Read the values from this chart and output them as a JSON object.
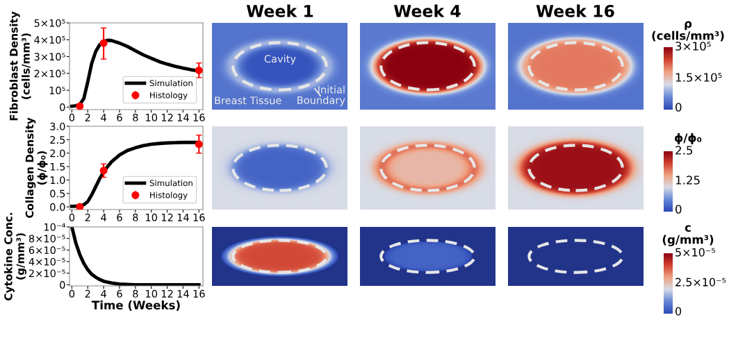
{
  "chart_data": [
    {
      "type": "line",
      "ylabel": "Fibroblast Density\n(cells/mm³)",
      "xlim": [
        -0.3,
        16.5
      ],
      "xticks": [
        0,
        2,
        4,
        6,
        8,
        10,
        12,
        14,
        16
      ],
      "ylim": [
        -15000,
        500000
      ],
      "yticks": [
        0,
        {
          "value": 100000,
          "label": "10⁵"
        },
        {
          "value": 200000,
          "label": "2×10⁵"
        },
        {
          "value": 300000,
          "label": "3×10⁵"
        },
        {
          "value": 400000,
          "label": "4×10⁵"
        },
        {
          "value": 500000,
          "label": "5×10⁵"
        }
      ],
      "grid": false,
      "legend": "bottom right",
      "series": [
        {
          "name": "Simulation",
          "type": "line",
          "color": "#000000",
          "marker": "none",
          "x": [
            0,
            0.5,
            1,
            1.5,
            2,
            2.5,
            3,
            3.5,
            4,
            4.5,
            5,
            6,
            7,
            8,
            9,
            10,
            11,
            12,
            13,
            14,
            15,
            16
          ],
          "values": [
            5000,
            8000,
            15000,
            50000,
            150000,
            260000,
            330000,
            370000,
            390000,
            397000,
            395000,
            380000,
            360000,
            335000,
            310000,
            290000,
            270000,
            255000,
            242000,
            232000,
            222000,
            215000
          ]
        },
        {
          "name": "Histology",
          "type": "scatter",
          "color": "#ff0000",
          "marker": "circle",
          "x": [
            1,
            4,
            16
          ],
          "values": [
            5000,
            380000,
            218000
          ],
          "errors": [
            null,
            [
              285000,
              470000
            ],
            [
              175000,
              262000
            ]
          ]
        }
      ]
    },
    {
      "type": "other",
      "annotations": [
        "Week 1",
        "Week 4",
        "Week 16",
        "Cavity",
        "Breast Tissue",
        "Initial\nBoundary",
        "ρ\n(cells/mm³)",
        "3×10⁵",
        "1.5×10⁵",
        "0",
        "ϕ/ϕ₀",
        "2.5",
        "1.25",
        "0",
        "c\n(g/mm³)",
        "5×10⁻⁵",
        "2.5×10⁻⁵",
        "0"
      ]
    },
    {
      "type": "line",
      "ylabel": "Collagen Density\n(ϕ/ϕ₀)",
      "xlim": [
        -0.3,
        16.5
      ],
      "xticks": [
        0,
        2,
        4,
        6,
        8,
        10,
        12,
        14,
        16
      ],
      "ylim": [
        -0.1,
        3.0
      ],
      "yticks": [
        {
          "value": 0,
          "label": "0.0"
        },
        0.5,
        {
          "value": 1,
          "label": "1.0"
        },
        1.5,
        {
          "value": 2,
          "label": "2.0"
        },
        2.5,
        {
          "value": 3,
          "label": "3.0"
        }
      ],
      "grid": false,
      "legend": "bottom right",
      "series": [
        {
          "name": "Simulation",
          "type": "line",
          "color": "#000000",
          "marker": "none",
          "x": [
            0,
            1,
            1.5,
            2,
            2.5,
            3,
            3.5,
            4,
            4.5,
            5,
            6,
            7,
            8,
            9,
            10,
            11,
            12,
            13,
            14,
            16
          ],
          "values": [
            0.02,
            0.03,
            0.08,
            0.2,
            0.45,
            0.75,
            1.05,
            1.3,
            1.5,
            1.68,
            1.93,
            2.1,
            2.2,
            2.28,
            2.33,
            2.36,
            2.38,
            2.39,
            2.4,
            2.4
          ]
        },
        {
          "name": "Histology",
          "type": "scatter",
          "color": "#ff0000",
          "marker": "circle",
          "x": [
            1,
            4,
            16
          ],
          "values": [
            0.0,
            1.35,
            2.33
          ],
          "errors": [
            null,
            [
              1.1,
              1.6
            ],
            [
              2.0,
              2.67
            ]
          ]
        }
      ]
    },
    {
      "type": "line",
      "ylabel": "Cytokine Conc.\n(g/mm³)",
      "xlabel": "Time (Weeks)",
      "xlim": [
        -0.3,
        16.5
      ],
      "xticks": [
        0,
        2,
        4,
        6,
        8,
        10,
        12,
        14,
        16
      ],
      "ylim": [
        -2e-06,
        0.0001
      ],
      "yticks": [
        0,
        {
          "value": 2e-05,
          "label": "2×10⁻⁵"
        },
        {
          "value": 4e-05,
          "label": "4×10⁻⁵"
        },
        {
          "value": 6e-05,
          "label": "6×10⁻⁵"
        },
        {
          "value": 8e-05,
          "label": "8×10⁻⁵"
        },
        {
          "value": 0.0001,
          "label": "10⁻⁴"
        }
      ],
      "grid": false,
      "series": [
        {
          "type": "line",
          "color": "#000000",
          "marker": "none",
          "x": [
            0,
            0.5,
            1,
            1.5,
            2,
            2.5,
            3,
            3.5,
            4,
            5,
            6,
            8,
            10,
            16
          ],
          "values": [
            0.0001,
            7.2e-05,
            5.2e-05,
            3.7e-05,
            2.6e-05,
            1.8e-05,
            1.3e-05,
            9e-06,
            6e-06,
            3e-06,
            1e-06,
            0,
            0,
            0
          ]
        }
      ]
    }
  ]
}
